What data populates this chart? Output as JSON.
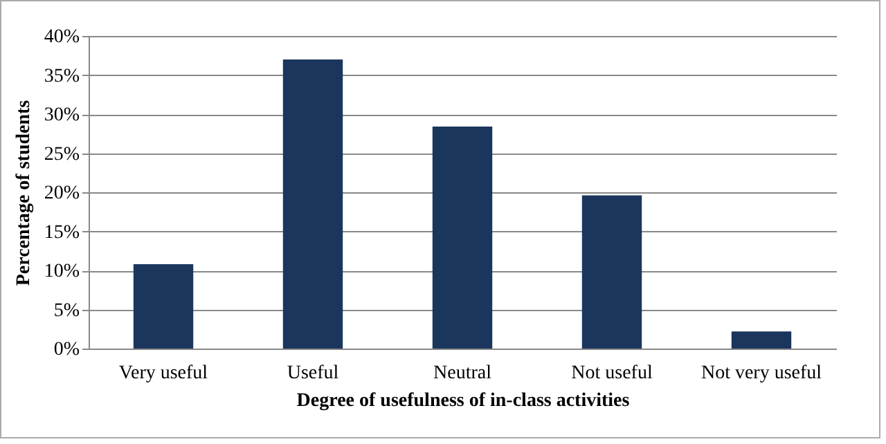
{
  "chart_data": {
    "type": "bar",
    "xlabel": "Degree of usefulness of in-class activities",
    "ylabel": "Percentage of students",
    "categories": [
      "Very useful",
      "Useful",
      "Neutral",
      "Not useful",
      "Not very useful"
    ],
    "values": [
      10.8,
      37.0,
      28.4,
      19.6,
      2.2
    ],
    "color": "#1b365d",
    "ylim": [
      0,
      40
    ],
    "yticks": [
      {
        "value": 0,
        "label": "0%"
      },
      {
        "value": 5,
        "label": "5%"
      },
      {
        "value": 10,
        "label": "10%"
      },
      {
        "value": 15,
        "label": "15%"
      },
      {
        "value": 20,
        "label": "20%"
      },
      {
        "value": 25,
        "label": "25%"
      },
      {
        "value": 30,
        "label": "30%"
      },
      {
        "value": 35,
        "label": "35%"
      },
      {
        "value": 40,
        "label": "40%"
      }
    ],
    "grid": "y"
  }
}
